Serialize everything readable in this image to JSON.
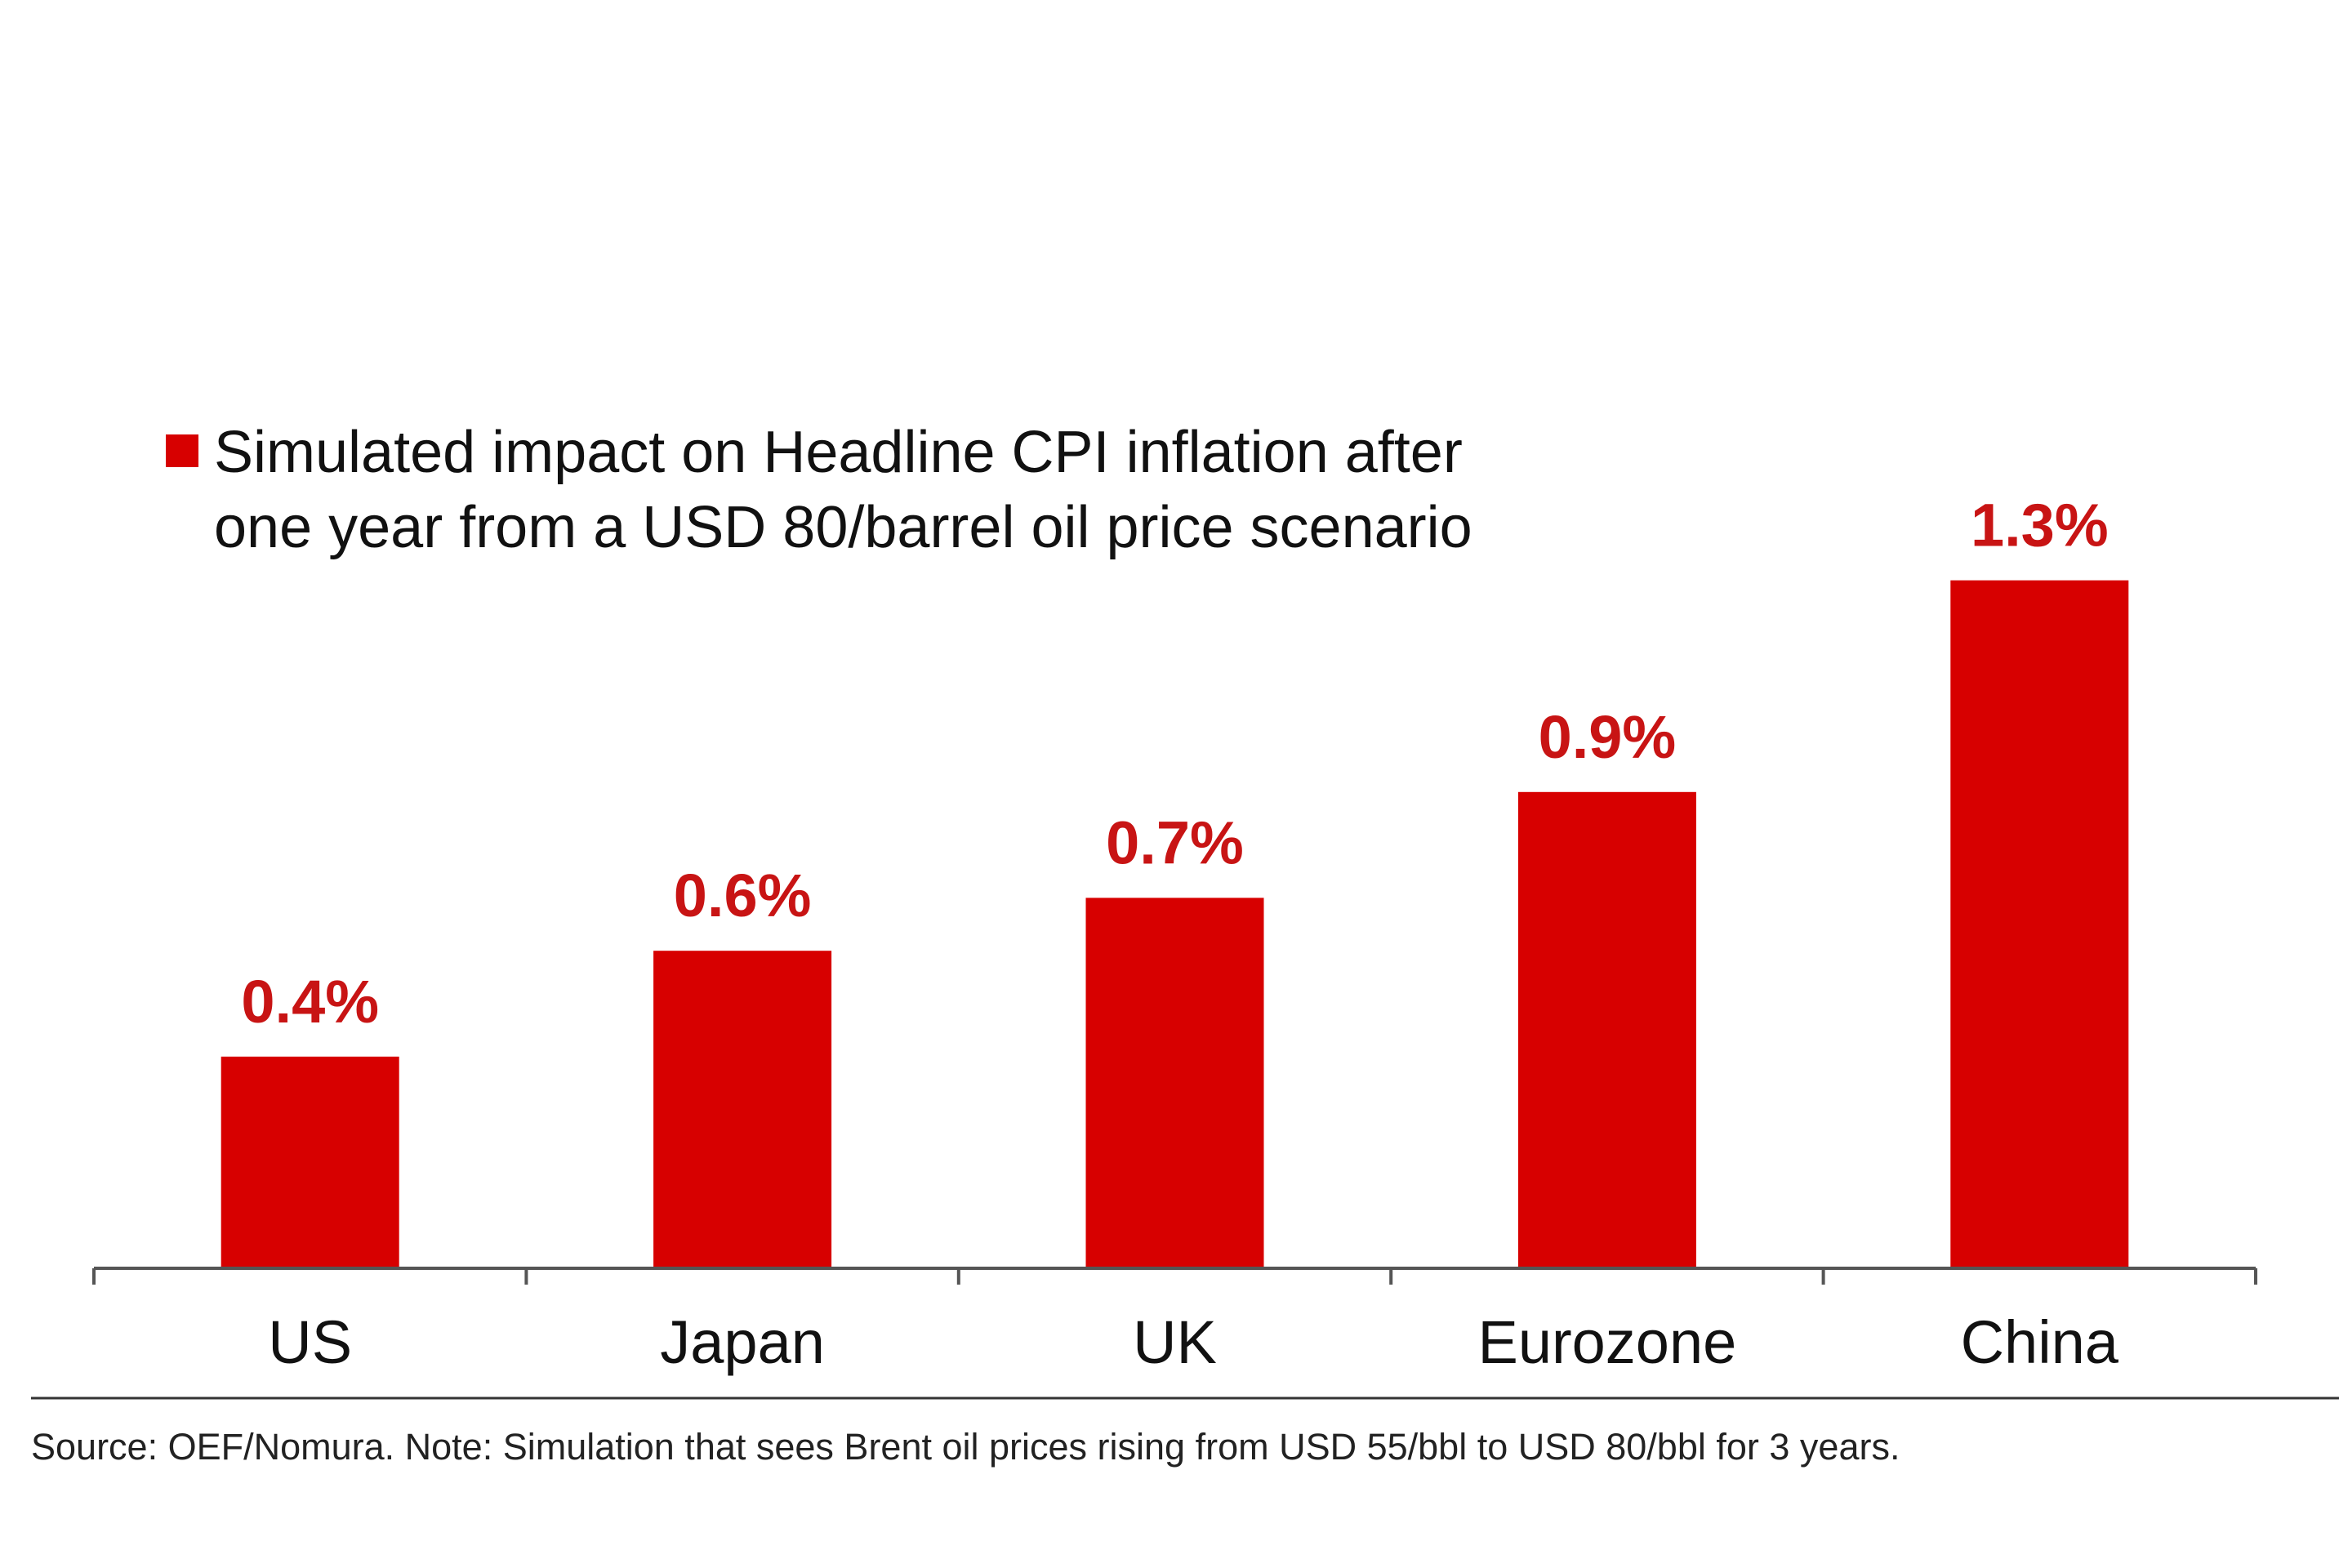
{
  "chart_data": {
    "type": "bar",
    "categories": [
      "US",
      "Japan",
      "UK",
      "Eurozone",
      "China"
    ],
    "values": [
      0.4,
      0.6,
      0.7,
      0.9,
      1.3
    ],
    "value_labels": [
      "0.4%",
      "0.6%",
      "0.7%",
      "0.9%",
      "1.3%"
    ],
    "series": [
      {
        "name": "Simulated impact on Headline CPI inflation after one year from a USD 80/barrel oil price scenario",
        "values": [
          0.4,
          0.6,
          0.7,
          0.9,
          1.3
        ]
      }
    ],
    "legend": {
      "line1": "Simulated impact on Headline CPI inflation after",
      "line2": "one year from a USD 80/barrel oil price scenario",
      "placement": "top-left"
    },
    "title": "",
    "xlabel": "",
    "ylabel": "",
    "ylim": [
      0,
      1.3
    ],
    "grid": false
  },
  "source_note": "Source: OEF/Nomura. Note: Simulation that sees Brent oil prices rising from USD 55/bbl to USD 80/bbl for 3 years.",
  "colors": {
    "bar": "#d70000",
    "label": "#c81414",
    "axis": "#555555"
  }
}
